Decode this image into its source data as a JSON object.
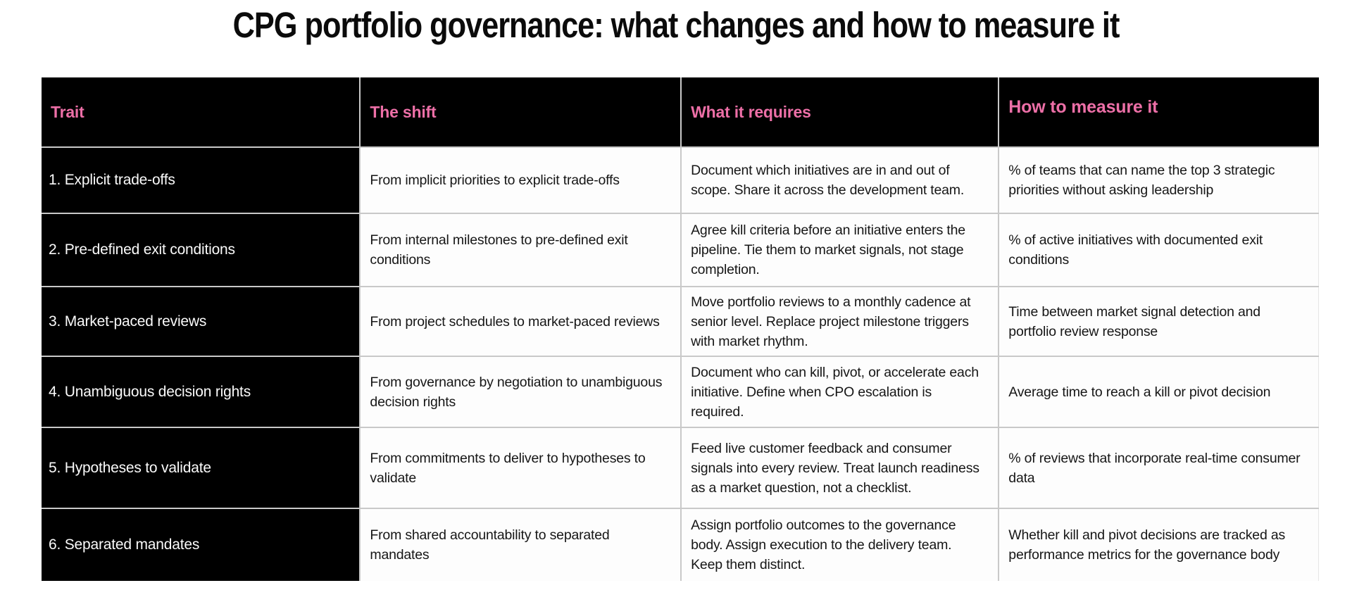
{
  "title": "CPG portfolio governance: what changes and how to measure it",
  "colors": {
    "header_text_pink": "#ed6fa7",
    "header_bg_black": "#000000",
    "trait_column_bg": "#000000",
    "trait_text": "#fafafa",
    "cell_bg": "#fdfdfd",
    "body_text": "#161616",
    "grid_line": "#c9c9c9",
    "title_text": "#0b0b0b"
  },
  "table": {
    "columns": [
      "Trait",
      "The shift",
      "What it requires",
      "How to measure it"
    ],
    "rows": [
      {
        "trait": "1. Explicit trade-offs",
        "shift": "From implicit priorities to explicit trade-offs",
        "requires": "Document which initiatives are in and out of scope. Share it across the development team.",
        "measure": "% of teams that can name the top 3 strategic priorities without asking leadership"
      },
      {
        "trait": "2. Pre-defined exit conditions",
        "shift": "From internal milestones to pre-defined exit conditions",
        "requires": "Agree kill criteria before an initiative enters the pipeline. Tie them to market signals, not stage completion.",
        "measure": "% of active initiatives with documented exit conditions"
      },
      {
        "trait": "3. Market-paced reviews",
        "shift": "From project schedules to market-paced reviews",
        "requires": "Move portfolio reviews to a monthly cadence at senior level. Replace project milestone triggers with market rhythm.",
        "measure": "Time between market signal detection and portfolio review response"
      },
      {
        "trait": "4. Unambiguous decision rights",
        "shift": "From governance by negotiation to unambiguous decision rights",
        "requires": "Document who can kill, pivot, or accelerate each initiative. Define when CPO escalation is required.",
        "measure": "Average time to reach a kill or pivot decision"
      },
      {
        "trait": "5. Hypotheses to validate",
        "shift": "From commitments to deliver to hypotheses to validate",
        "requires": "Feed live customer feedback and consumer signals into every review. Treat launch readiness as a market question, not a checklist.",
        "measure": "% of reviews that incorporate real-time consumer data"
      },
      {
        "trait": "6. Separated mandates",
        "shift": "From shared accountability to separated mandates",
        "requires": "Assign portfolio outcomes to the governance body. Assign execution to the delivery team. Keep them distinct.",
        "measure": "Whether kill and pivot decisions are tracked as performance metrics for the governance body"
      }
    ]
  }
}
